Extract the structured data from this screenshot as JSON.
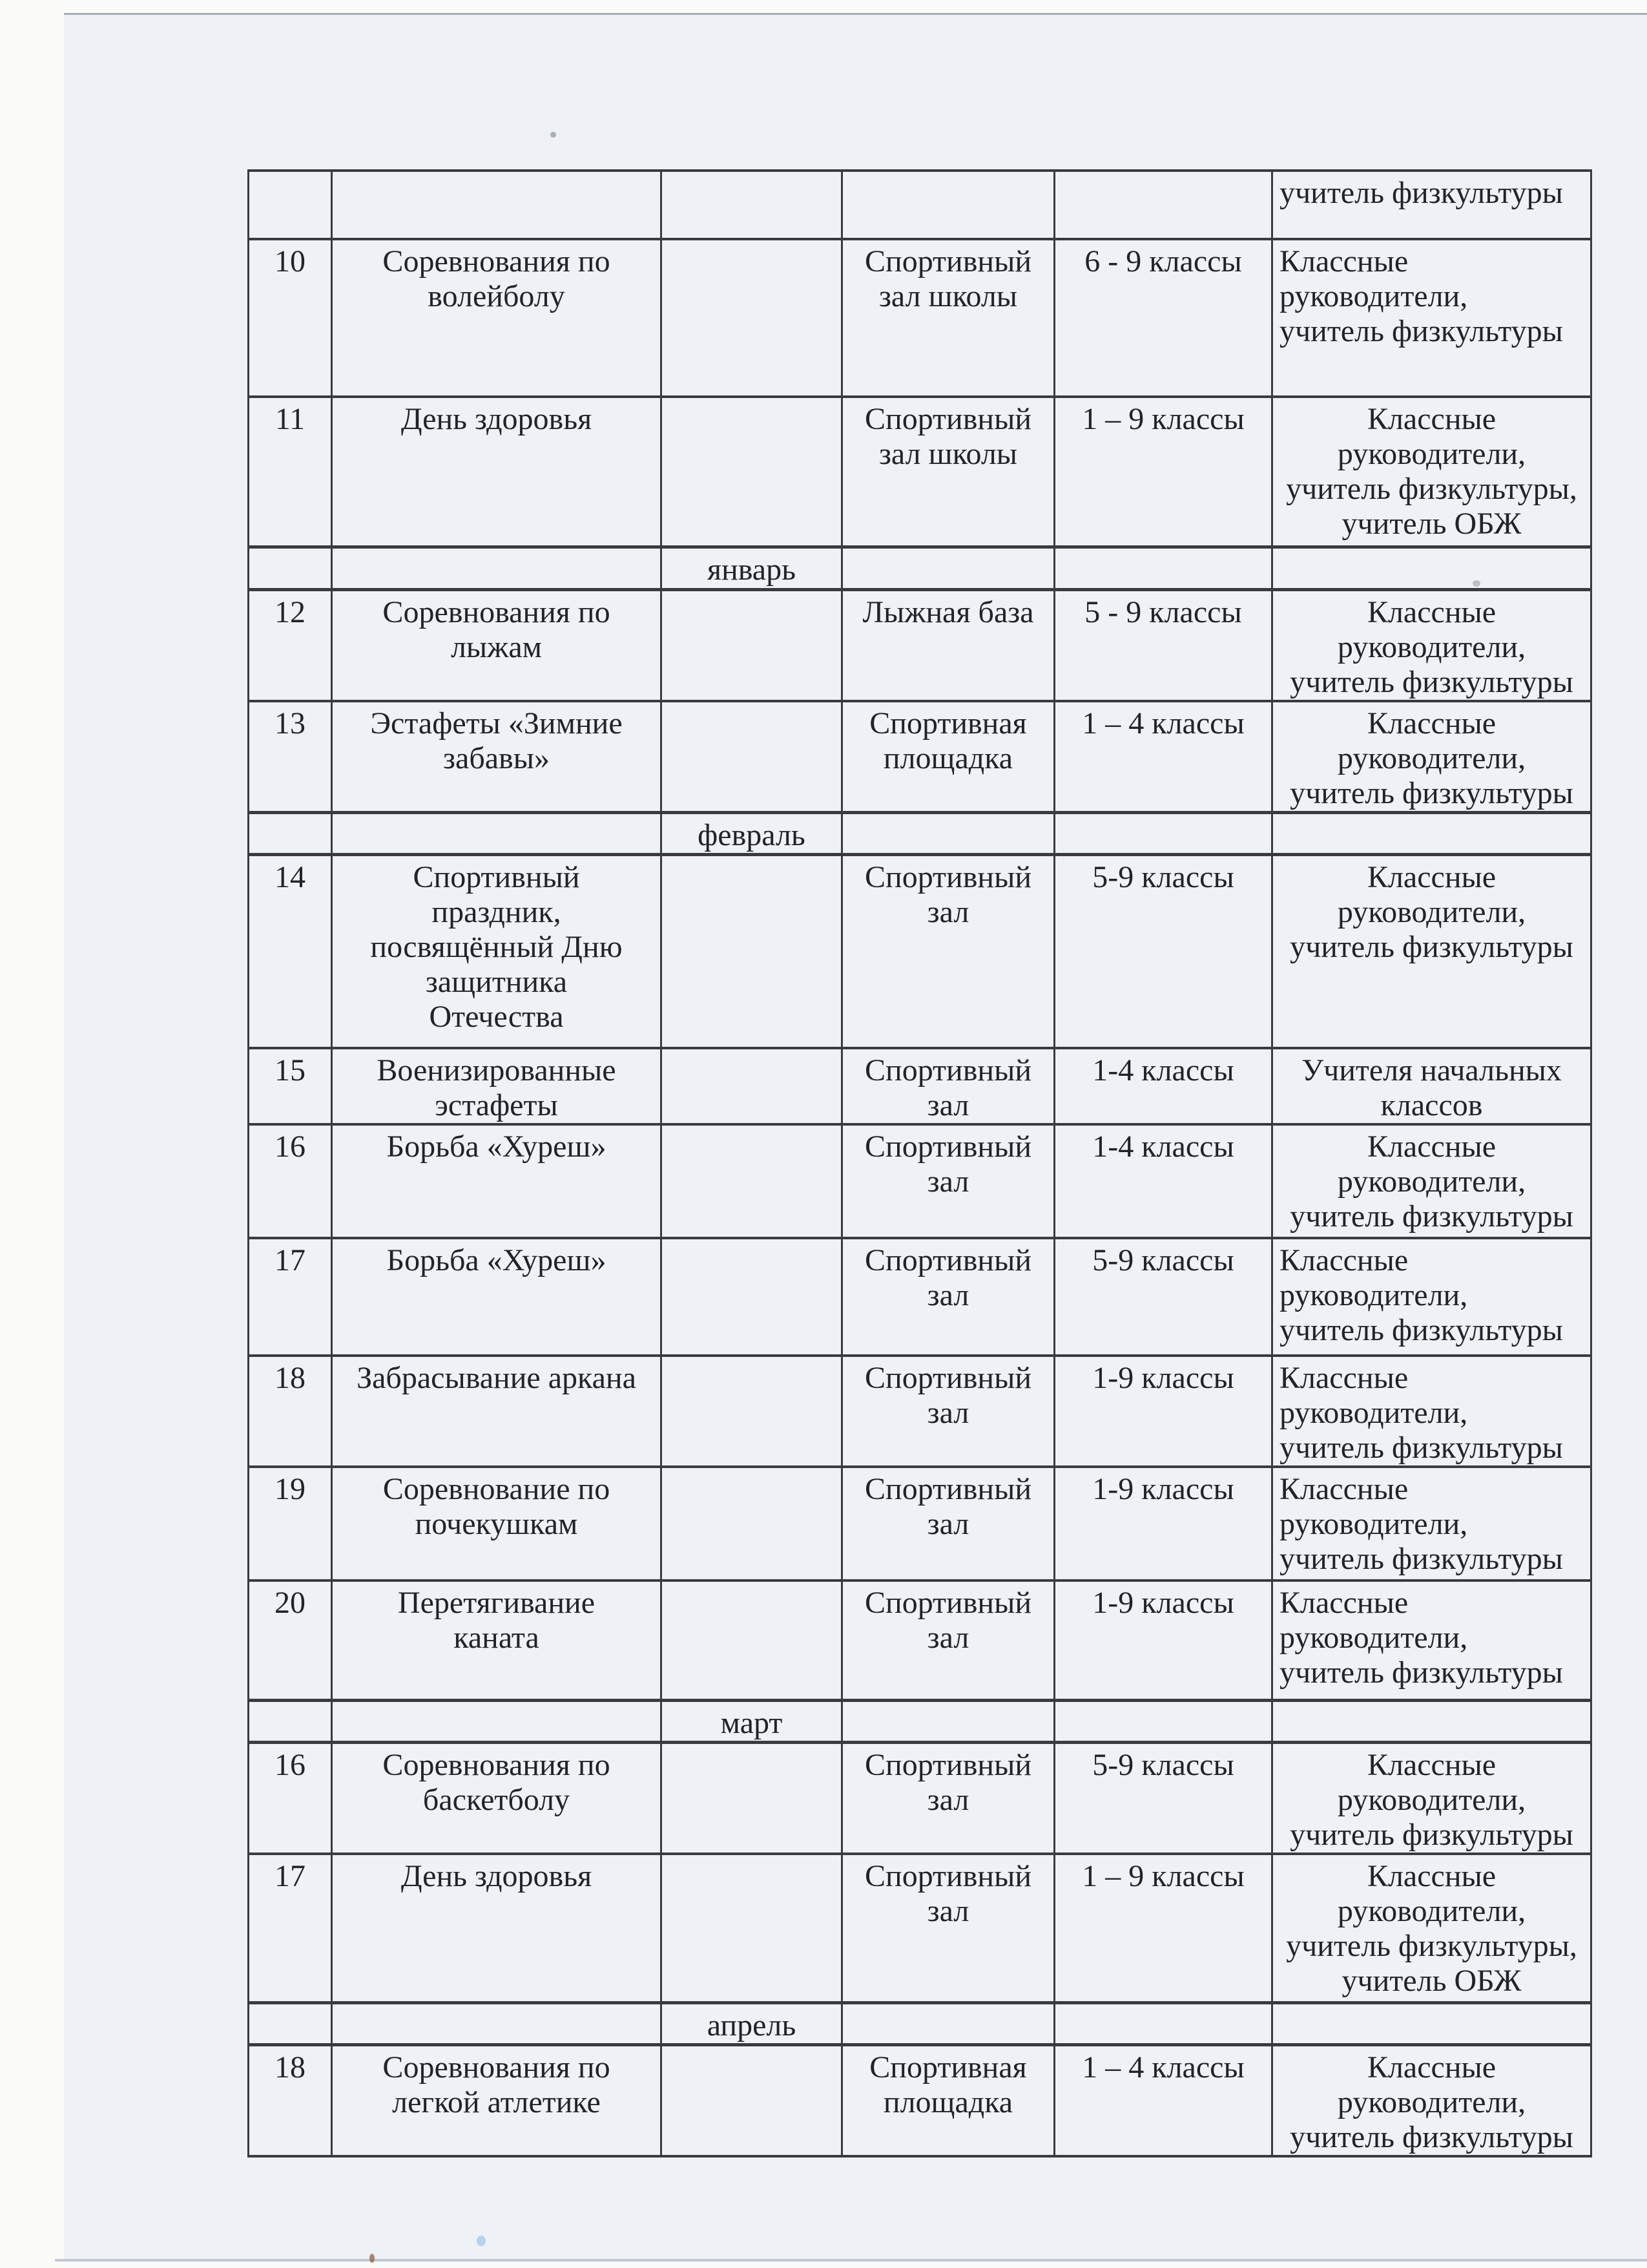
{
  "theme": {
    "scanner_bg": "#fbfbf8",
    "paper": "#eef1f5",
    "ink": "#232327",
    "grid_line": "#3a3a40",
    "paper_edge": "#9aa1ad",
    "scan_streak": "#9fa9bd",
    "speck_blue": "#9fc4e8",
    "speck_brown": "#8a5a3a"
  },
  "table": {
    "rows": [
      {
        "type": "partial",
        "responsible": [
          "учитель физкультуры"
        ],
        "responsible_align": "left"
      },
      {
        "type": "event",
        "num": "10",
        "name": [
          "Соревнования по",
          "волейболу"
        ],
        "place": [
          "Спортивный",
          "зал школы"
        ],
        "classes": "6 - 9 классы",
        "responsible": [
          "Классные",
          "руководители,",
          "учитель физкультуры"
        ],
        "responsible_align": "left"
      },
      {
        "type": "event",
        "num": "11",
        "name": [
          "День здоровья"
        ],
        "place": [
          "Спортивный",
          "зал школы"
        ],
        "classes": "1 – 9 классы",
        "responsible": [
          "Классные",
          "руководители,",
          "учитель физкультуры,",
          "учитель ОБЖ"
        ],
        "responsible_align": "center"
      },
      {
        "type": "month",
        "label": "январь"
      },
      {
        "type": "event",
        "num": "12",
        "name": [
          "Соревнования по",
          "лыжам"
        ],
        "place": [
          "Лыжная база"
        ],
        "classes": "5 - 9 классы",
        "responsible": [
          "Классные",
          "руководители,",
          "учитель физкультуры"
        ],
        "responsible_align": "center"
      },
      {
        "type": "event",
        "num": "13",
        "name": [
          "Эстафеты «Зимние",
          "забавы»"
        ],
        "place": [
          "Спортивная",
          "площадка"
        ],
        "classes": "1 – 4 классы",
        "responsible": [
          "Классные",
          "руководители,",
          "учитель физкультуры"
        ],
        "responsible_align": "center"
      },
      {
        "type": "month",
        "label": "февраль"
      },
      {
        "type": "event",
        "num": "14",
        "name": [
          "Спортивный",
          "праздник,",
          "посвящённый Дню",
          "защитника",
          "Отечества"
        ],
        "place": [
          "Спортивный",
          "зал"
        ],
        "classes": "5-9 классы",
        "responsible": [
          "Классные",
          "руководители,",
          "учитель физкультуры"
        ],
        "responsible_align": "center"
      },
      {
        "type": "event",
        "num": "15",
        "name": [
          "Военизированные",
          "эстафеты"
        ],
        "place": [
          "Спортивный",
          "зал"
        ],
        "classes": "1-4 классы",
        "responsible": [
          "Учителя начальных",
          "классов"
        ],
        "responsible_align": "center"
      },
      {
        "type": "event",
        "num": "16",
        "name": [
          "Борьба «Хуреш»"
        ],
        "place": [
          "Спортивный",
          "зал"
        ],
        "classes": "1-4 классы",
        "responsible": [
          "Классные",
          "руководители,",
          "учитель физкультуры"
        ],
        "responsible_align": "center"
      },
      {
        "type": "event",
        "num": "17",
        "name": [
          "Борьба «Хуреш»"
        ],
        "place": [
          "Спортивный",
          "зал"
        ],
        "classes": "5-9 классы",
        "responsible": [
          "Классные",
          "руководители,",
          "учитель физкультуры"
        ],
        "responsible_align": "left"
      },
      {
        "type": "event",
        "num": "18",
        "name": [
          "Забрасывание аркана"
        ],
        "place": [
          "Спортивный",
          "зал"
        ],
        "classes": "1-9 классы",
        "responsible": [
          "Классные",
          "руководители,",
          "учитель физкультуры"
        ],
        "responsible_align": "left"
      },
      {
        "type": "event",
        "num": "19",
        "name": [
          "Соревнование по",
          "почекушкам"
        ],
        "place": [
          "Спортивный",
          "зал"
        ],
        "classes": "1-9 классы",
        "responsible": [
          "Классные",
          "руководители,",
          "учитель физкультуры"
        ],
        "responsible_align": "left"
      },
      {
        "type": "event",
        "num": "20",
        "name": [
          "Перетягивание",
          "каната"
        ],
        "place": [
          "Спортивный",
          "зал"
        ],
        "classes": "1-9 классы",
        "responsible": [
          "Классные",
          "руководители,",
          "учитель физкультуры"
        ],
        "responsible_align": "left"
      },
      {
        "type": "month",
        "label": "март"
      },
      {
        "type": "event",
        "num": "16",
        "name": [
          "Соревнования по",
          "баскетболу"
        ],
        "place": [
          "Спортивный",
          "зал"
        ],
        "classes": "5-9 классы",
        "responsible": [
          "Классные",
          "руководители,",
          "учитель физкультуры"
        ],
        "responsible_align": "center"
      },
      {
        "type": "event",
        "num": "17",
        "name": [
          "День здоровья"
        ],
        "place": [
          "Спортивный",
          "зал"
        ],
        "classes": "1 – 9 классы",
        "responsible": [
          "Классные",
          "руководители,",
          "учитель физкультуры,",
          "учитель ОБЖ"
        ],
        "responsible_align": "center"
      },
      {
        "type": "month",
        "label": "апрель"
      },
      {
        "type": "event",
        "num": "18",
        "name": [
          "Соревнования по",
          "легкой атлетике"
        ],
        "place": [
          "Спортивная",
          "площадка"
        ],
        "classes": "1 – 4 классы",
        "responsible": [
          "Классные",
          "руководители,",
          "учитель физкультуры"
        ],
        "responsible_align": "center"
      }
    ]
  }
}
